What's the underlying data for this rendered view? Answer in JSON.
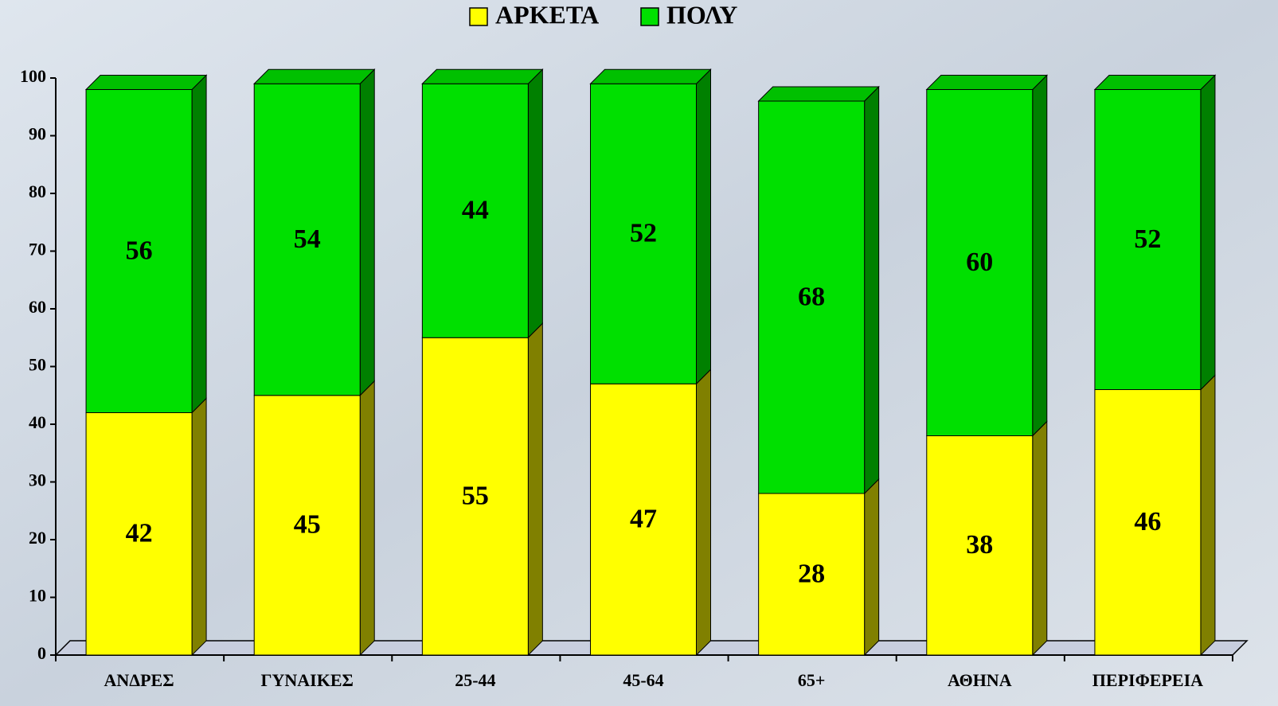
{
  "chart_data": {
    "type": "stacked-bar-3d",
    "categories": [
      "ΑΝΔΡΕΣ",
      "ΓΥΝΑΙΚΕΣ",
      "25-44",
      "45-64",
      "65+",
      "ΑΘΗΝΑ",
      "ΠΕΡΙΦΕΡΕΙΑ"
    ],
    "series": [
      {
        "name": "ΑΡΚΕΤΑ",
        "color": "#ffff00",
        "side_color": "#808000",
        "values": [
          42,
          45,
          55,
          47,
          28,
          38,
          46
        ]
      },
      {
        "name": "ΠΟΛΥ",
        "color": "#00e000",
        "side_color": "#008000",
        "values": [
          56,
          54,
          44,
          52,
          68,
          60,
          52
        ]
      }
    ],
    "ylim": [
      0,
      100
    ],
    "yticks": [
      0,
      10,
      20,
      30,
      40,
      50,
      60,
      70,
      80,
      90,
      100
    ],
    "grid": false,
    "legend": "top"
  }
}
